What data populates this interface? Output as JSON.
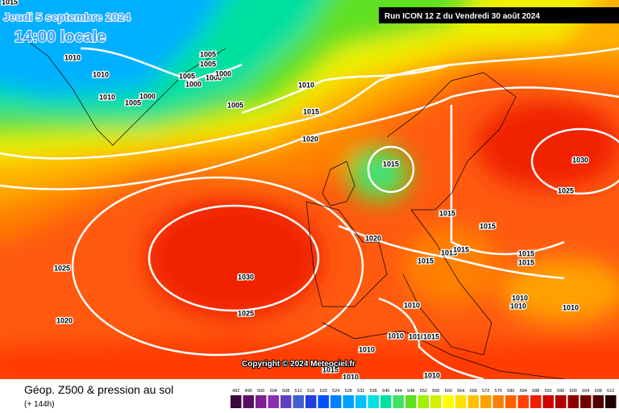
{
  "header": {
    "date": "Jeudi 5 septembre 2024",
    "time": "14:00 locale",
    "run": "Run ICON 12 Z du Vendredi 30 août 2024"
  },
  "map": {
    "isobar_labels": [
      "1015",
      "1010",
      "1010",
      "1010",
      "1005",
      "1000",
      "1005",
      "1000",
      "1005",
      "1005",
      "1000",
      "1000",
      "1010",
      "1005",
      "1015",
      "1020",
      "1015",
      "1030",
      "1025",
      "1015",
      "1015",
      "1020",
      "1015",
      "1015",
      "1015",
      "1015",
      "1015",
      "1025",
      "1030",
      "1010",
      "1010",
      "1010",
      "1010",
      "1025",
      "1020",
      "1010",
      "1010",
      "1015",
      "1010",
      "1015",
      "1010",
      "1010"
    ],
    "copyright": "Copyright © 2024 Meteociel.fr"
  },
  "footer": {
    "title": "Géop. Z500 & pression au sol",
    "subtitle": "(+ 144h)"
  },
  "scale": {
    "values": [
      492,
      496,
      500,
      504,
      508,
      512,
      516,
      520,
      524,
      528,
      532,
      536,
      540,
      544,
      548,
      552,
      556,
      560,
      564,
      568,
      572,
      576,
      580,
      584,
      588,
      592,
      596,
      600,
      604,
      608,
      612
    ],
    "colors": [
      "#3a0a3a",
      "#5a1060",
      "#7a2090",
      "#8a30b0",
      "#6040c0",
      "#4060d0",
      "#2040e0",
      "#0050ff",
      "#0080ff",
      "#00a0ff",
      "#00c0ff",
      "#00e0e0",
      "#00e0a0",
      "#40e060",
      "#60e020",
      "#a0f000",
      "#d0f000",
      "#ffff00",
      "#ffe000",
      "#ffc000",
      "#ffa000",
      "#ff8000",
      "#ff6000",
      "#ff4000",
      "#f02000",
      "#d00000",
      "#b00000",
      "#900000",
      "#700000",
      "#500000",
      "#200000"
    ]
  }
}
